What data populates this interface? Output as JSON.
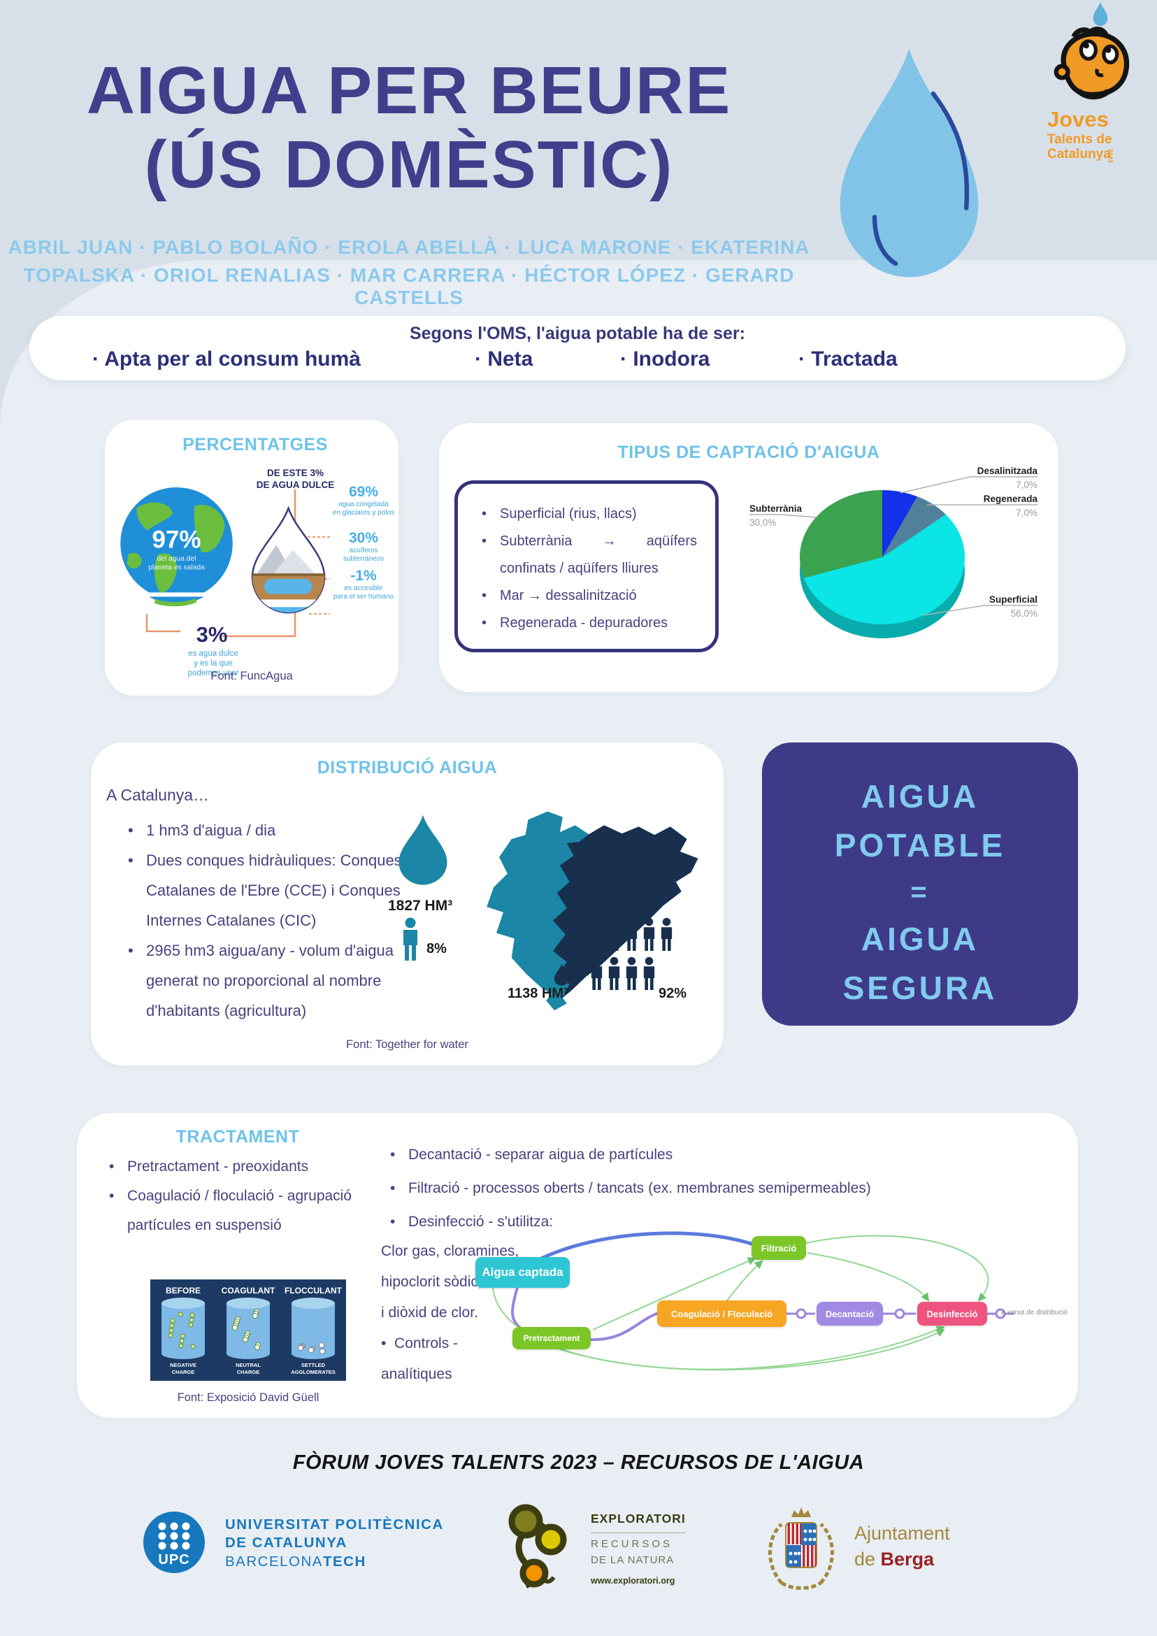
{
  "colors": {
    "title": "#423e8b",
    "authors": "#8cc9ec",
    "card_title": "#6fc2e9",
    "body_text": "#46427f",
    "potable_bg": "#3f3a88",
    "potable_text": "#80cbee",
    "map_cce": "#1b86a5",
    "map_cic": "#182f4d"
  },
  "header": {
    "title_line1": "AIGUA PER BEURE",
    "title_line2": "(ÚS DOMÈSTIC)",
    "authors_line1": "ABRIL JUAN · PABLO BOLAÑO · EROLA ABELLÀ · LUCA MARONE · EKATERINA",
    "authors_line2": "TOPALSKA · ORIOL RENALIAS · MAR CARRERA · HÉCTOR LÓPEZ · GERARD CASTELLS",
    "logo": {
      "word1": "Joves",
      "word2": "Talents de",
      "word3": "Catalunya",
      "year": "2023"
    }
  },
  "oms": {
    "heading": "Segons l'OMS, l'aigua potable ha de ser:",
    "items": [
      "· Apta per al consum humà",
      "· Neta",
      "· Inodora",
      "· Tractada"
    ]
  },
  "percentatges": {
    "title": "PERCENTATGES",
    "earth_value": "97%",
    "earth_caption_l1": "del agua del",
    "earth_caption_l2": "planeta es salada",
    "fresh_value": "3%",
    "fresh_caption_l1": "es agua dulce",
    "fresh_caption_l2": "y es la que",
    "fresh_caption_l3": "podemos usar",
    "drop_heading_l1": "DE ESTE 3%",
    "drop_heading_l2": "DE AGUA DULCE",
    "stats": [
      {
        "value": "69%",
        "caption_l1": "agua congelada",
        "caption_l2": "en glaciares y polos"
      },
      {
        "value": "30%",
        "caption_l1": "acuíferos",
        "caption_l2": "subterráneos"
      },
      {
        "value": "-1%",
        "caption_l1": "es accesible",
        "caption_l2": "para el ser humano"
      }
    ],
    "source": "Font: FuncAgua"
  },
  "captacio": {
    "title": "TIPUS DE CAPTACIÓ D'AIGUA",
    "bullets": [
      "Superficial (rius, llacs)",
      "Subterrània → aqüífers confinats / aqüífers lliures",
      "Mar → dessalinització",
      "Regenerada - depuradores"
    ]
  },
  "chart_data": {
    "type": "pie",
    "title": "TIPUS DE CAPTACIÓ D'AIGUA",
    "labels": [
      "Desalinitzada",
      "Regenerada",
      "Superficial",
      "Subterrània"
    ],
    "values": [
      7.0,
      7.0,
      56.0,
      30.0
    ],
    "pct_labels": [
      "7,0%",
      "7,0%",
      "56,0%",
      "30,0%"
    ],
    "colors": [
      "#1330ea",
      "#50809a",
      "#0be5e5",
      "#3ba24f"
    ],
    "rim_color": "#09acac",
    "style": "3d-pie",
    "legend_position": "callout-labels"
  },
  "distribucio": {
    "title": "DISTRIBUCIÓ AIGUA",
    "intro": "A Catalunya…",
    "bullets": [
      "1 hm3 d'aigua / dia",
      "Dues conques hidràuliques: Conques Catalanes de l'Ebre (CCE) i Conques Internes Catalanes (CIC)",
      "2965 hm3 aigua/any - volum d'aigua generat no proporcional al nombre d'habitants (agricultura)"
    ],
    "cce": {
      "volume": "1827 HM³",
      "population": "8%",
      "persons": 1,
      "color": "#1b86a5"
    },
    "cic": {
      "volume": "1138 HM³",
      "population": "92%",
      "person_rows": [
        5,
        4
      ],
      "color": "#182f4d"
    },
    "source": "Font: Together for water"
  },
  "potable": {
    "line1": "AIGUA",
    "line2": "POTABLE",
    "line3": "=",
    "line4": "AIGUA",
    "line5": "SEGURA"
  },
  "tractament": {
    "title": "TRACTAMENT",
    "left_bullets": [
      "Pretractament - preoxidants",
      "Coagulació / floculació - agrupació partícules en suspensió"
    ],
    "right_bullets": [
      "Decantació - separar aigua de partícules",
      "Filtració - processos oberts / tancats (ex. membranes semipermeables)",
      "Desinfecció - s'utilitza:"
    ],
    "note_lines": [
      "Clor gas, cloramines,",
      "hipoclorit sòdic, ozó",
      "i diòxid de clor."
    ],
    "controls_l1": "Controls -",
    "controls_l2": "analítiques",
    "beaker": {
      "cols": [
        {
          "label": "BEFORE",
          "cap1": "NEGATIVE",
          "cap2": "CHARGE"
        },
        {
          "label": "COAGULANT",
          "cap1": "NEUTRAL",
          "cap2": "CHARGE"
        },
        {
          "label": "FLOCCULANT",
          "cap1": "SETTLED",
          "cap2": "AGGLOMERATES"
        }
      ]
    },
    "source": "Font: Exposició David Güell",
    "flow": {
      "nodes": [
        {
          "label": "Aigua captada",
          "color": "#2fc6d3"
        },
        {
          "label": "Filtració",
          "color": "#7cc727"
        },
        {
          "label": "Pretractament",
          "color": "#7cc727"
        },
        {
          "label": "Coagulació / Floculació",
          "color": "#f6a623"
        },
        {
          "label": "Decantació",
          "color": "#a18ae4"
        },
        {
          "label": "Desinfecció",
          "color": "#ef5480"
        }
      ],
      "terminal": "A xarxa de distribució"
    }
  },
  "footer": {
    "event": "FÒRUM JOVES TALENTS 2023 – RECURSOS DE L'AIGUA",
    "upc": {
      "abbr": "UPC",
      "line1": "UNIVERSITAT POLITÈCNICA",
      "line2": "DE CATALUNYA",
      "line3a": "BARCELONA",
      "line3b": "TECH"
    },
    "exploratori": {
      "line1": "EXPLORATORI",
      "line2": "RECURSOS",
      "line3": "DE LA NATURA",
      "url": "www.exploratori.org"
    },
    "berga": {
      "line1": "Ajuntament",
      "line2a": "de ",
      "line2b": "Berga"
    }
  }
}
